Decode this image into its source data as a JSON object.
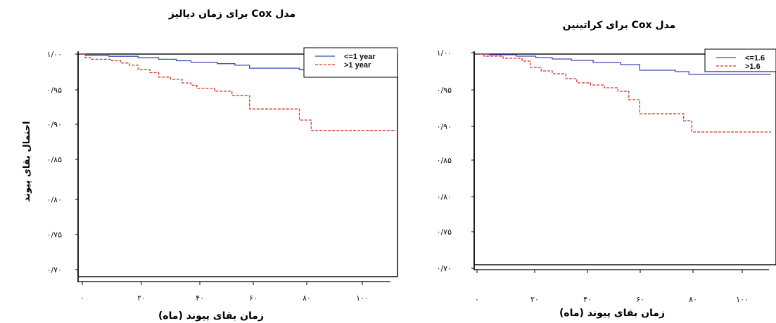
{
  "shared": {
    "ylabel": "احتمال بقای پیوند"
  },
  "chart_data": [
    {
      "type": "line",
      "title": "مدل Cox برای زمان دیالیز",
      "xlabel": "زمان بقای پیوند (ماه)",
      "ylabel": "احتمال بقای پیوند",
      "xlim": [
        0,
        108
      ],
      "ylim": [
        0.7,
        1.0
      ],
      "x_ticks": [
        0,
        20,
        40,
        60,
        80,
        100
      ],
      "x_tick_labels": [
        "۰",
        "۲۰",
        "۴۰",
        "۶۰",
        "۸۰",
        "۱۰۰"
      ],
      "y_ticks": [
        1.0,
        0.95,
        0.9,
        0.85,
        0.8,
        0.75,
        0.7
      ],
      "y_tick_labels": [
        "۱/۰۰",
        "۰/۹۵",
        "۰/۹۰",
        "۰/۸۵",
        "۰/۸۰",
        "۰/۷۵",
        "۰/۷۰"
      ],
      "legend_position": "top-right",
      "grid": false,
      "series": [
        {
          "name": "<=1 year",
          "color": "#3a4bb5",
          "dash": "solid",
          "points": [
            [
              0,
              1.0
            ],
            [
              2,
              0.998
            ],
            [
              10,
              0.997
            ],
            [
              20,
              0.995
            ],
            [
              27,
              0.993
            ],
            [
              33,
              0.991
            ],
            [
              38,
              0.989
            ],
            [
              47,
              0.987
            ],
            [
              53,
              0.985
            ],
            [
              58,
              0.981
            ],
            [
              75,
              0.979
            ],
            [
              78,
              0.976
            ],
            [
              108,
              0.976
            ]
          ]
        },
        {
          "name": ">1 year",
          "color": "#d9302c",
          "dash": "dashed",
          "points": [
            [
              0,
              1.0
            ],
            [
              2,
              0.995
            ],
            [
              4,
              0.993
            ],
            [
              11,
              0.991
            ],
            [
              14,
              0.988
            ],
            [
              17,
              0.985
            ],
            [
              20,
              0.979
            ],
            [
              24,
              0.975
            ],
            [
              27,
              0.969
            ],
            [
              31,
              0.966
            ],
            [
              35,
              0.961
            ],
            [
              38,
              0.958
            ],
            [
              40,
              0.954
            ],
            [
              46,
              0.95
            ],
            [
              52,
              0.944
            ],
            [
              58,
              0.926
            ],
            [
              75,
              0.911
            ],
            [
              79,
              0.897
            ],
            [
              108,
              0.897
            ]
          ]
        }
      ]
    },
    {
      "type": "line",
      "title": "مدل Cox برای کراتینین",
      "xlabel": "زمان بقای پیوند (ماه)",
      "ylabel": "",
      "xlim": [
        0,
        108
      ],
      "ylim": [
        0.7,
        1.0
      ],
      "x_ticks": [
        0,
        20,
        40,
        60,
        80,
        100
      ],
      "x_tick_labels": [
        "۰",
        "۲۰",
        "۴۰",
        "۶۰",
        "۸۰",
        "۱۰۰"
      ],
      "y_ticks": [
        1.0,
        0.95,
        0.9,
        0.85,
        0.8,
        0.75,
        0.7
      ],
      "y_tick_labels": [
        "۱/۰۰",
        "۰/۹۵",
        "۰/۹۰",
        "۰/۸۵",
        "۰/۸۰",
        "۰/۷۵",
        "۰/۷۰"
      ],
      "legend_position": "top-right",
      "grid": false,
      "series": [
        {
          "name": "<=1.6",
          "color": "#3a4bb5",
          "dash": "solid",
          "points": [
            [
              0,
              1.0
            ],
            [
              5,
              0.999
            ],
            [
              15,
              0.997
            ],
            [
              22,
              0.995
            ],
            [
              28,
              0.993
            ],
            [
              35,
              0.991
            ],
            [
              43,
              0.988
            ],
            [
              53,
              0.985
            ],
            [
              60,
              0.977
            ],
            [
              73,
              0.975
            ],
            [
              78,
              0.971
            ],
            [
              108,
              0.971
            ]
          ]
        },
        {
          "name": ">1.6",
          "color": "#d9302c",
          "dash": "dashed",
          "points": [
            [
              0,
              1.0
            ],
            [
              3,
              0.997
            ],
            [
              10,
              0.994
            ],
            [
              17,
              0.99
            ],
            [
              20,
              0.981
            ],
            [
              24,
              0.976
            ],
            [
              28,
              0.972
            ],
            [
              33,
              0.965
            ],
            [
              37,
              0.959
            ],
            [
              42,
              0.956
            ],
            [
              47,
              0.952
            ],
            [
              52,
              0.947
            ],
            [
              56,
              0.935
            ],
            [
              60,
              0.915
            ],
            [
              76,
              0.905
            ],
            [
              79,
              0.889
            ],
            [
              108,
              0.889
            ]
          ]
        }
      ]
    }
  ]
}
